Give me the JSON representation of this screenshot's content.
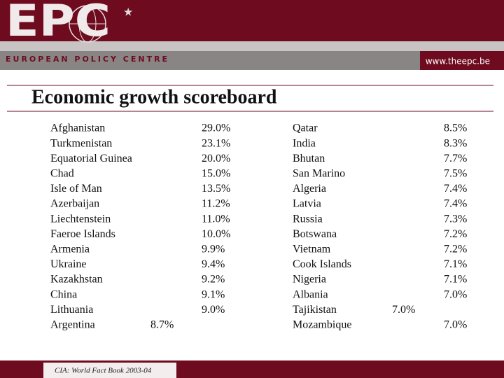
{
  "header": {
    "logo": "EPC",
    "organization": "EUROPEAN POLICY CENTRE",
    "url": "www.theepc.be"
  },
  "title": "Economic growth scoreboard",
  "columns": [
    {
      "rows": [
        {
          "country": "Afghanistan",
          "value": "29.0%"
        },
        {
          "country": "Turkmenistan",
          "value": "23.1%"
        },
        {
          "country": "Equatorial Guinea",
          "value": "20.0%"
        },
        {
          "country": "Chad",
          "value": "15.0%"
        },
        {
          "country": "Isle of Man",
          "value": "13.5%"
        },
        {
          "country": "Azerbaijan",
          "value": "11.2%"
        },
        {
          "country": "Liechtenstein",
          "value": "11.0%"
        },
        {
          "country": "Faeroe Islands",
          "value": "10.0%"
        },
        {
          "country": "Armenia",
          "value": "9.9%"
        },
        {
          "country": "Ukraine",
          "value": "9.4%"
        },
        {
          "country": "Kazakhstan",
          "value": "9.2%"
        },
        {
          "country": "China",
          "value": "9.1%"
        },
        {
          "country": "Lithuania",
          "value": "9.0%"
        },
        {
          "country": "Argentina",
          "value": "8.7%"
        }
      ]
    },
    {
      "rows": [
        {
          "country": "Qatar",
          "value": "8.5%"
        },
        {
          "country": "India",
          "value": "8.3%"
        },
        {
          "country": "Bhutan",
          "value": "7.7%"
        },
        {
          "country": "San Marino",
          "value": "7.5%"
        },
        {
          "country": "Algeria",
          "value": "7.4%"
        },
        {
          "country": "Latvia",
          "value": "7.4%"
        },
        {
          "country": "Russia",
          "value": "7.3%"
        },
        {
          "country": "Botswana",
          "value": "7.2%"
        },
        {
          "country": "Vietnam",
          "value": "7.2%"
        },
        {
          "country": "Cook Islands",
          "value": "7.1%"
        },
        {
          "country": "Nigeria",
          "value": "7.1%"
        },
        {
          "country": "Albania",
          "value": "7.0%"
        },
        {
          "country": "Tajikistan",
          "value": "7.0%"
        },
        {
          "country": "Mozambique",
          "value": "7.0%"
        }
      ]
    }
  ],
  "footer": {
    "source": "CIA: World Fact Book 2003-04"
  }
}
